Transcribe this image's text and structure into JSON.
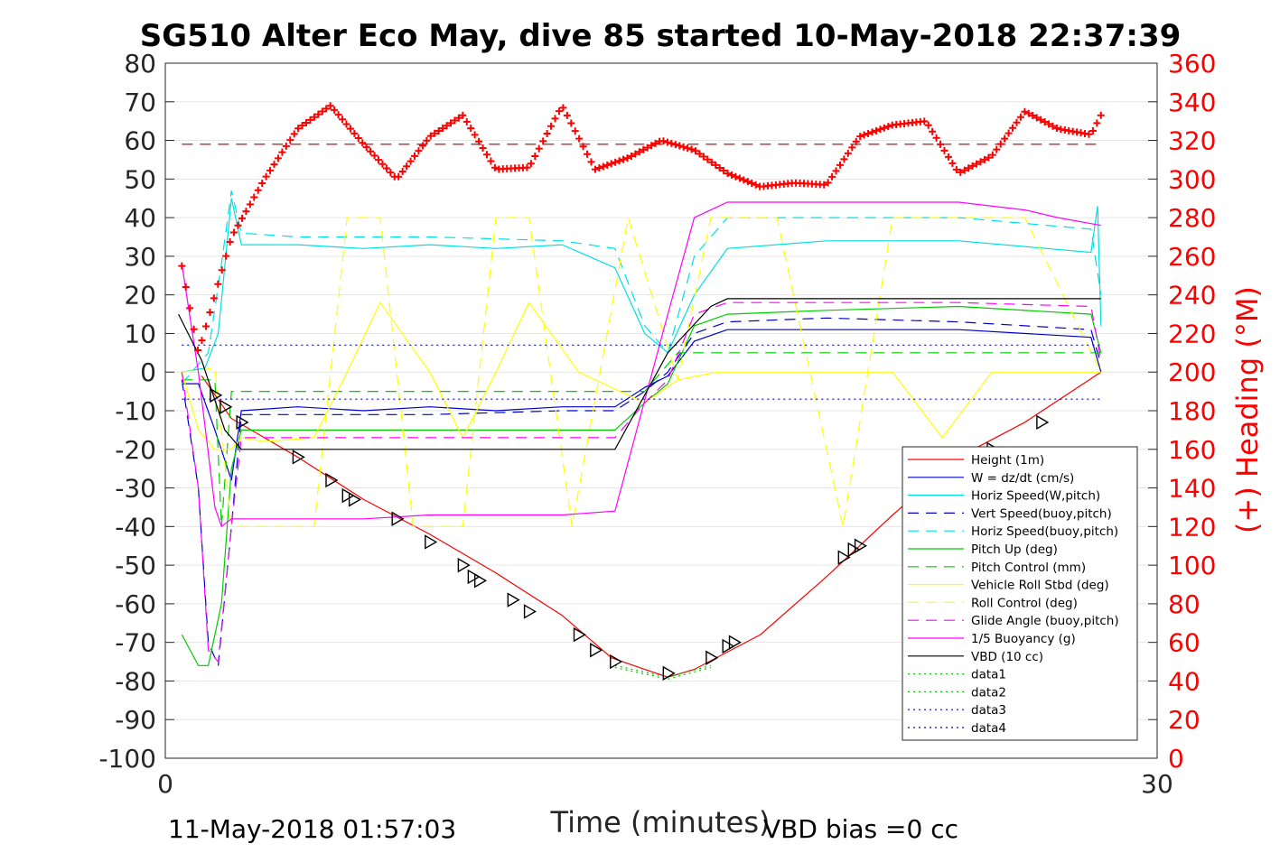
{
  "chart_data": {
    "type": "line",
    "title": "SG510 Alter Eco May, dive 85 started 10-May-2018 22:37:39",
    "xlabel": "Time (minutes)",
    "ylabel_right": "(+) Heading (°M)",
    "xlim": [
      0,
      30
    ],
    "ylim_left": [
      -100,
      80
    ],
    "ylim_right": [
      0,
      360
    ],
    "x_ticks": [
      "0",
      "30"
    ],
    "left_ticks": [
      "80",
      "70",
      "60",
      "50",
      "40",
      "30",
      "20",
      "10",
      "0",
      "-10",
      "-20",
      "-30",
      "-40",
      "-50",
      "-60",
      "-70",
      "-80",
      "-90",
      "-100"
    ],
    "right_ticks": [
      "360",
      "340",
      "320",
      "300",
      "280",
      "260",
      "240",
      "220",
      "200",
      "180",
      "160",
      "140",
      "120",
      "100",
      "80",
      "60",
      "40",
      "20",
      "0"
    ],
    "grid": true,
    "legend_position": "lower-right",
    "footer_left": "11-May-2018 01:57:03",
    "footer_right": "VBD bias =0 cc",
    "heading_mean_line": 318,
    "series": [
      {
        "name": "Height (1m)",
        "color": "#ff0000",
        "style": "solid",
        "x": [
          1.1,
          2,
          4,
          6,
          8,
          10,
          12,
          13.5,
          14.5,
          15.2,
          16,
          18,
          20,
          22,
          24,
          26,
          28.3
        ],
        "y": [
          -1,
          -12,
          -22,
          -33,
          -42,
          -52,
          -63,
          -74,
          -77,
          -79,
          -77,
          -68,
          -53,
          -37,
          -22,
          -13,
          0
        ]
      },
      {
        "name": "W = dz/dt (cm/s)",
        "color": "#0000cc",
        "style": "solid",
        "x": [
          0.5,
          1,
          1.5,
          2,
          2.3,
          4,
          6,
          8,
          10,
          12,
          13.6,
          14.5,
          15.2,
          16,
          17,
          20,
          24,
          28,
          28.3
        ],
        "y": [
          -3,
          -3,
          -15,
          -28,
          -10,
          -9,
          -10,
          -9,
          -10,
          -9,
          -9,
          -4,
          -1,
          8,
          11,
          11,
          11,
          9,
          0
        ]
      },
      {
        "name": "Horiz Speed(W,pitch)",
        "color": "#00e0e0",
        "style": "solid",
        "x": [
          0.5,
          1.2,
          1.6,
          2,
          2.3,
          4,
          6,
          8,
          10,
          12,
          13.6,
          14.5,
          15.2,
          16,
          17,
          20,
          24,
          28,
          28.2,
          28.3
        ],
        "y": [
          0,
          1,
          10,
          45,
          33,
          33,
          32,
          33,
          32,
          33,
          27,
          10,
          5,
          20,
          32,
          34,
          34,
          31,
          43,
          12
        ]
      },
      {
        "name": "Vert Speed(buoy,pitch)",
        "color": "#0000cc",
        "style": "dashed",
        "x": [
          0.5,
          1,
          1.3,
          1.6,
          2,
          2.3,
          4,
          8,
          12,
          13.6,
          14.5,
          15.2,
          16,
          17,
          20,
          24,
          28,
          28.3
        ],
        "y": [
          -2,
          -30,
          -70,
          -76,
          -40,
          -11,
          -11,
          -11,
          -10,
          -10,
          -5,
          0,
          10,
          13,
          14,
          13,
          11,
          2
        ]
      },
      {
        "name": "Horiz Speed(buoy,pitch)",
        "color": "#00e0e0",
        "style": "dashed",
        "x": [
          0.5,
          1.3,
          1.7,
          2.0,
          2.3,
          4,
          8,
          12,
          13.6,
          14.5,
          15.2,
          16,
          17,
          20,
          24,
          28,
          28.3
        ],
        "y": [
          -3,
          5,
          28,
          47,
          36,
          35,
          35,
          34,
          32,
          12,
          5,
          30,
          40,
          40,
          40,
          37,
          20
        ]
      },
      {
        "name": "Pitch Up (deg)",
        "color": "#00cc00",
        "style": "solid",
        "x": [
          0.5,
          1,
          1.3,
          1.7,
          2.0,
          2.3,
          4,
          8,
          12,
          13.6,
          14.5,
          15.2,
          16,
          17,
          20,
          24,
          28,
          28.3
        ],
        "y": [
          -68,
          -76,
          -76,
          -60,
          -25,
          -15,
          -15,
          -15,
          -15,
          -15,
          -8,
          -3,
          12,
          15,
          16,
          17,
          15,
          5
        ]
      },
      {
        "name": "Pitch Control (mm)",
        "color": "#00cc00",
        "style": "dashed",
        "x": [
          0.5,
          1.5,
          1.7,
          2.0,
          2.3,
          4,
          8,
          12,
          13.6,
          14.5,
          15.5,
          17,
          20,
          24,
          28,
          28.3
        ],
        "y": [
          -2,
          -2,
          -40,
          -5,
          -5,
          -5,
          -5,
          -5,
          -5,
          -5,
          5,
          5,
          5,
          5,
          5,
          5
        ]
      },
      {
        "name": "Vehicle Roll Stbd (deg)",
        "color": "#ffff00",
        "style": "solid",
        "x": [
          0.5,
          1.0,
          1.5,
          2.0,
          2.3,
          3,
          4.5,
          5.5,
          6.5,
          8,
          9,
          10,
          11,
          12.5,
          14.5,
          15.5,
          16.7,
          19,
          20.5,
          22,
          23.5,
          25,
          26.5,
          28.3
        ],
        "y": [
          0,
          -15,
          -20,
          -20,
          -17,
          -18,
          -17,
          0,
          18,
          0,
          -17,
          0,
          18,
          0,
          -8,
          -2,
          0,
          0,
          0,
          0,
          -17,
          0,
          0,
          0
        ]
      },
      {
        "name": "Roll Control (deg)",
        "color": "#ffff00",
        "style": "dashed",
        "x": [
          0.5,
          1.5,
          2.0,
          3,
          4.5,
          5.5,
          6.5,
          7.5,
          9,
          10,
          11,
          12.3,
          14,
          15.5,
          16.5,
          18.5,
          20.5,
          22,
          24.5,
          26,
          28.3
        ],
        "y": [
          0,
          1,
          -40,
          -40,
          -40,
          40,
          40,
          -40,
          -40,
          40,
          40,
          -40,
          40,
          -2,
          40,
          40,
          -40,
          40,
          40,
          40,
          0
        ]
      },
      {
        "name": "Glide Angle (buoy,pitch)",
        "color": "#ff00ff",
        "style": "dashed",
        "x": [
          0.5,
          1.0,
          1.3,
          1.6,
          2.0,
          2.3,
          4,
          8,
          12,
          13.6,
          14.5,
          15.2,
          16,
          17,
          20,
          24,
          28,
          28.3
        ],
        "y": [
          0,
          -30,
          -72,
          -75,
          -40,
          -17,
          -17,
          -17,
          -17,
          -17,
          -8,
          -2,
          15,
          18,
          18,
          18,
          17,
          3
        ]
      },
      {
        "name": "1/5 Buoyancy (g)",
        "color": "#ff00ff",
        "style": "solid",
        "x": [
          0.5,
          1.0,
          1.5,
          1.7,
          2.0,
          3,
          6,
          8,
          10,
          12,
          13.6,
          15.2,
          16,
          17,
          20,
          24,
          26,
          27,
          28.3
        ],
        "y": [
          28,
          0,
          -35,
          -40,
          -38,
          -38,
          -38,
          -37,
          -37,
          -37,
          -36,
          15,
          40,
          44,
          44,
          44,
          42,
          40,
          38
        ]
      },
      {
        "name": "VBD (10 cc)",
        "color": "#000000",
        "style": "solid",
        "x": [
          0.4,
          1.1,
          1.8,
          2.3,
          4,
          8,
          12,
          13.6,
          15.2,
          16.5,
          17.0,
          20,
          24,
          28.3
        ],
        "y": [
          15,
          3,
          -15,
          -20,
          -20,
          -20,
          -20,
          -20,
          5,
          17,
          19,
          19,
          19,
          19
        ]
      },
      {
        "name": "data1",
        "color": "#00cc00",
        "style": "dotted",
        "x": [
          13.6,
          15.2,
          16.5
        ],
        "y": [
          -76,
          -79,
          -76
        ]
      },
      {
        "name": "data2",
        "color": "#00cc00",
        "style": "dotted",
        "x": [
          13.6,
          15.2,
          16.5
        ],
        "y": [
          -76.5,
          -79.5,
          -76.5
        ]
      },
      {
        "name": "data3",
        "color": "#0000cc",
        "style": "dotted",
        "x": [
          0.5,
          28.3
        ],
        "y": [
          7,
          7
        ]
      },
      {
        "name": "data4",
        "color": "#0000cc",
        "style": "dotted",
        "x": [
          0.5,
          28.3
        ],
        "y": [
          -7,
          -7
        ]
      }
    ],
    "heading_points": {
      "name": "(+) Heading (°M)",
      "color": "#ff0000",
      "x": [
        0.5,
        1,
        2,
        3,
        4,
        5,
        6,
        7,
        8,
        9,
        10,
        11,
        12,
        13,
        14,
        15,
        16,
        17,
        18,
        19,
        20,
        21,
        22,
        23,
        24,
        25,
        26,
        27,
        28,
        28.3
      ],
      "y": [
        255,
        210,
        270,
        300,
        326,
        338,
        318,
        300,
        322,
        333,
        305,
        306,
        338,
        305,
        311,
        320,
        315,
        303,
        296,
        298,
        297,
        322,
        328,
        330,
        303,
        312,
        335,
        326,
        323,
        333
      ]
    },
    "markers": {
      "x": [
        1.5,
        1.8,
        2.3,
        4.0,
        5.0,
        5.5,
        5.7,
        7.0,
        8.0,
        9.0,
        9.3,
        9.5,
        10.5,
        11.0,
        12.5,
        13.0,
        13.6,
        15.2,
        16.5,
        17.0,
        17.2,
        20.5,
        20.8,
        21.0,
        25.0,
        26.5
      ],
      "y": [
        -6,
        -9,
        -13,
        -22,
        -28,
        -32,
        -33,
        -38,
        -44,
        -50,
        -53,
        -54,
        -59,
        -62,
        -68,
        -72,
        -75,
        -78,
        -74,
        -71,
        -70,
        -48,
        -46,
        -45,
        -20,
        -13
      ]
    }
  }
}
